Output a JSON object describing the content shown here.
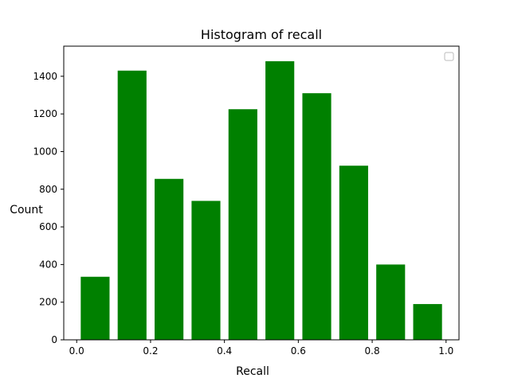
{
  "chart_data": {
    "type": "bar",
    "title": "Histogram of recall",
    "xlabel": "Recall",
    "ylabel": "Count",
    "xlim": [
      -0.035,
      1.035
    ],
    "ylim": [
      0,
      1560
    ],
    "bar_width": 0.078,
    "bar_color": "#008000",
    "grid": false,
    "legend": "top-right",
    "x": [
      0.05,
      0.15,
      0.25,
      0.35,
      0.45,
      0.55,
      0.65,
      0.75,
      0.85,
      0.95
    ],
    "values": [
      335,
      1430,
      855,
      738,
      1225,
      1480,
      1310,
      925,
      400,
      190
    ],
    "xticks": [
      0.0,
      0.2,
      0.4,
      0.6,
      0.8,
      1.0
    ],
    "xtick_labels": [
      "0.0",
      "0.2",
      "0.4",
      "0.6",
      "0.8",
      "1.0"
    ],
    "yticks": [
      0,
      200,
      400,
      600,
      800,
      1000,
      1200,
      1400
    ],
    "ytick_labels": [
      "0",
      "200",
      "400",
      "600",
      "800",
      "1000",
      "1200",
      "1400"
    ]
  }
}
